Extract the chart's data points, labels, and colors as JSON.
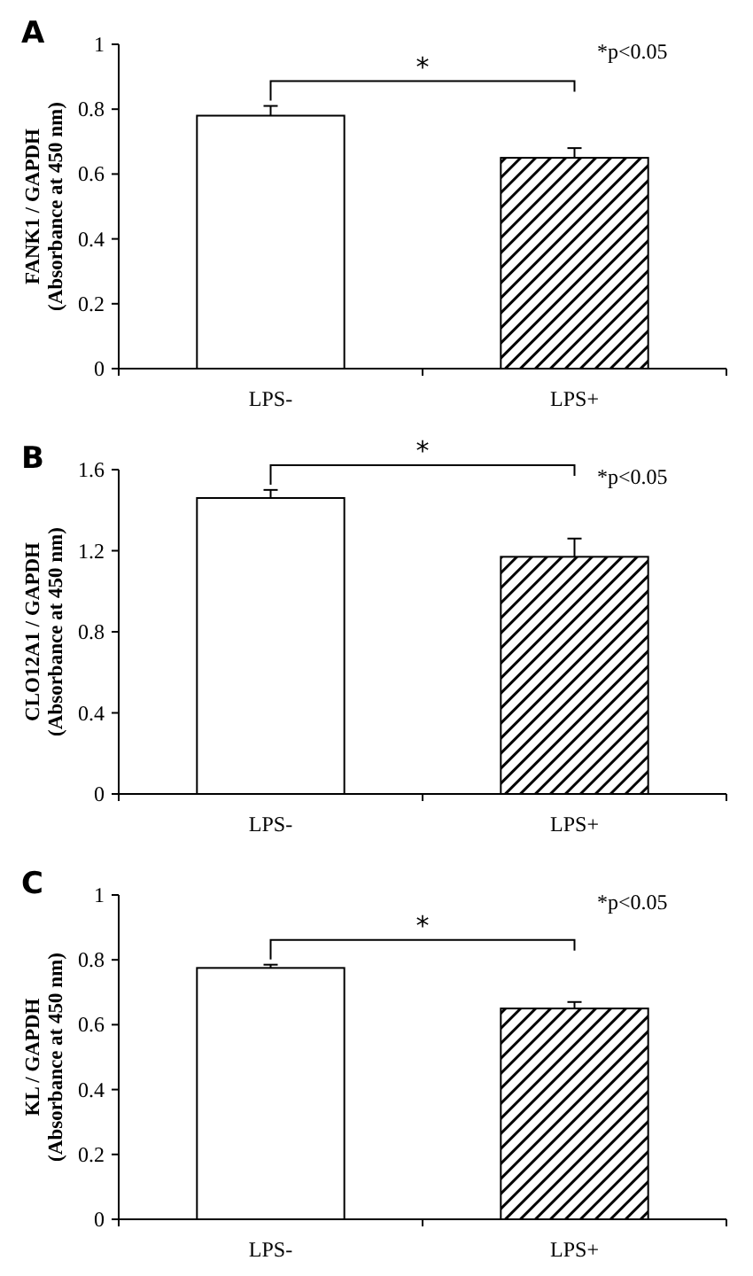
{
  "chart_data": [
    {
      "type": "bar",
      "title": "A",
      "ylabel": "FANK1 / GAPDH\n(Absorbance at 450 nm)",
      "categories": [
        "LPS-",
        "LPS+"
      ],
      "values": [
        0.78,
        0.65
      ],
      "errors": [
        0.03,
        0.03
      ],
      "colors": [
        "#ffffff",
        "#000000"
      ],
      "ylim": [
        0,
        1
      ],
      "yticks": [
        0,
        0.2,
        0.4,
        0.6,
        0.8,
        1
      ],
      "grid": false,
      "annotations": [
        "*",
        "*p<0.05"
      ]
    },
    {
      "type": "bar",
      "title": "B",
      "ylabel": "CLO12A1 / GAPDH\n(Absorbance at 450 nm)",
      "categories": [
        "LPS-",
        "LPS+"
      ],
      "values": [
        1.46,
        1.17
      ],
      "errors": [
        0.04,
        0.09
      ],
      "colors": [
        "#ffffff",
        "#000000"
      ],
      "ylim": [
        0,
        1.6
      ],
      "yticks": [
        0,
        0.4,
        0.8,
        1.2,
        1.6
      ],
      "grid": false,
      "annotations": [
        "*",
        "*p<0.05"
      ]
    },
    {
      "type": "bar",
      "title": "C",
      "ylabel": "KL / GAPDH\n(Absorbance at 450 nm)",
      "categories": [
        "LPS-",
        "LPS+"
      ],
      "values": [
        0.775,
        0.65
      ],
      "errors": [
        0.01,
        0.02
      ],
      "colors": [
        "#ffffff",
        "#000000"
      ],
      "ylim": [
        0,
        1
      ],
      "yticks": [
        0,
        0.2,
        0.4,
        0.6,
        0.8,
        1
      ],
      "grid": false,
      "annotations": [
        "*",
        "*p<0.05"
      ]
    }
  ]
}
